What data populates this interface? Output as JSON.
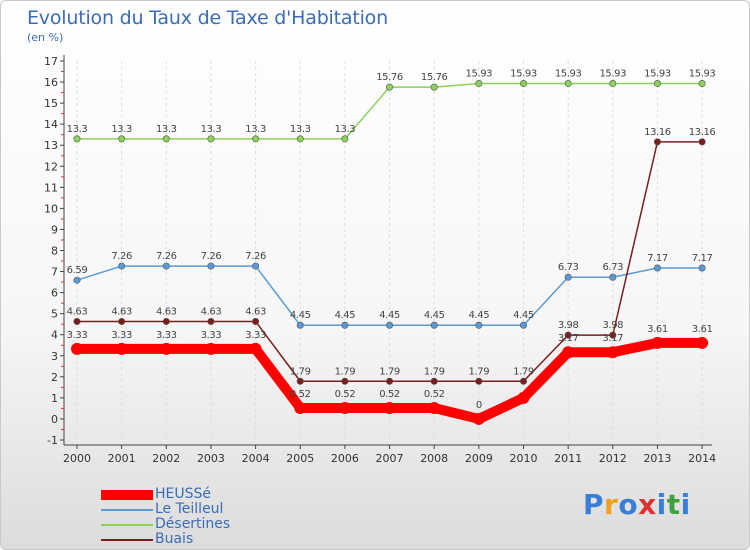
{
  "chart_data": {
    "type": "line",
    "title": "Evolution du Taux de Taxe d'Habitation",
    "subtitle": "(en %)",
    "x": [
      "2000",
      "2001",
      "2002",
      "2003",
      "2004",
      "2005",
      "2006",
      "2007",
      "2008",
      "2009",
      "2010",
      "2011",
      "2012",
      "2013",
      "2014"
    ],
    "ylim": [
      -1,
      17
    ],
    "yticks": [
      "-1",
      "0",
      "1",
      "2",
      "3",
      "4",
      "5",
      "6",
      "7",
      "8",
      "9",
      "10",
      "11",
      "12",
      "13",
      "14",
      "15",
      "16",
      "17"
    ],
    "grid": "vertical dashed",
    "series": [
      {
        "name": "HEUSSé",
        "color": "#ff0000",
        "values": [
          3.33,
          3.33,
          3.33,
          3.33,
          3.33,
          0.52,
          0.52,
          0.52,
          0.52,
          0,
          1,
          3.17,
          3.17,
          3.61,
          3.61
        ],
        "labels": [
          "3.33",
          "3.33",
          "3.33",
          "3.33",
          "3.33",
          "0.52",
          "0.52",
          "0.52",
          "0.52",
          "0",
          "",
          "3.17",
          "3.17",
          "3.61",
          "3.61"
        ]
      },
      {
        "name": "Le Teilleul",
        "color": "#5a9bd5",
        "values": [
          6.59,
          7.26,
          7.26,
          7.26,
          7.26,
          4.45,
          4.45,
          4.45,
          4.45,
          4.45,
          4.45,
          6.73,
          6.73,
          7.17,
          7.17
        ],
        "labels": [
          "6.59",
          "7.26",
          "7.26",
          "7.26",
          "7.26",
          "4.45",
          "4.45",
          "4.45",
          "4.45",
          "4.45",
          "4.45",
          "6.73",
          "6.73",
          "7.17",
          "7.17"
        ]
      },
      {
        "name": "Désertines",
        "color": "#8cd15a",
        "values": [
          13.3,
          13.3,
          13.3,
          13.3,
          13.3,
          13.3,
          13.3,
          15.76,
          15.76,
          15.93,
          15.93,
          15.93,
          15.93,
          15.93,
          15.93
        ],
        "labels": [
          "13.3",
          "13.3",
          "13.3",
          "13.3",
          "13.3",
          "13.3",
          "13.3",
          "15.76",
          "15.76",
          "15.93",
          "15.93",
          "15.93",
          "15.93",
          "15.93",
          "15.93"
        ]
      },
      {
        "name": "Buais",
        "color": "#7a1e1e",
        "values": [
          4.63,
          4.63,
          4.63,
          4.63,
          4.63,
          1.79,
          1.79,
          1.79,
          1.79,
          1.79,
          1.79,
          3.98,
          3.98,
          13.16,
          13.16
        ],
        "labels": [
          "4.63",
          "4.63",
          "4.63",
          "4.63",
          "4.63",
          "1.79",
          "1.79",
          "1.79",
          "1.79",
          "1.79",
          "1.79",
          "3.98",
          "3.98",
          "13.16",
          "13.16"
        ]
      }
    ]
  },
  "brand": {
    "text": "Proxiti",
    "letters": [
      "P",
      "r",
      "o",
      "x",
      "i",
      "t",
      "i"
    ],
    "colors": [
      "#3a7fd5",
      "#f0a020",
      "#3a7fd5",
      "#e03030",
      "#3a7fd5",
      "#40a040",
      "#3a7fd5"
    ]
  }
}
